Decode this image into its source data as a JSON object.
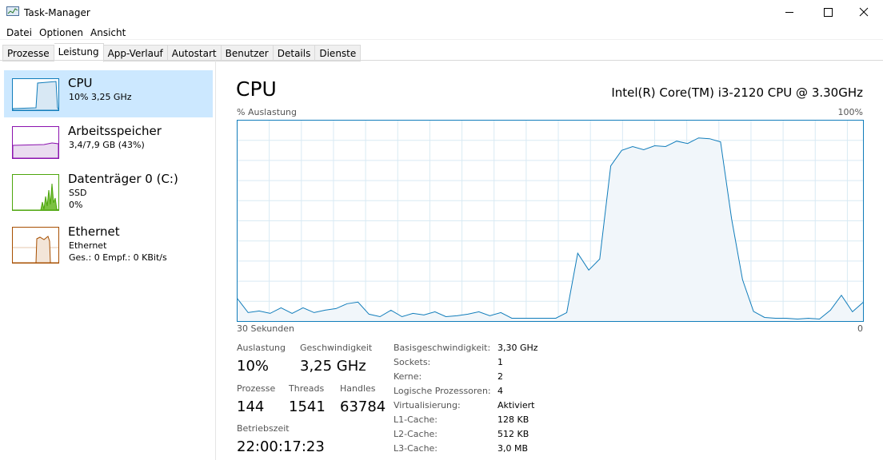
{
  "window": {
    "title": "Task-Manager"
  },
  "menu": [
    "Datei",
    "Optionen",
    "Ansicht"
  ],
  "tabs": {
    "items": [
      "Prozesse",
      "Leistung",
      "App-Verlauf",
      "Autostart",
      "Benutzer",
      "Details",
      "Dienste"
    ],
    "active": 1
  },
  "sidebar": [
    {
      "name": "CPU",
      "lines": [
        "10% 3,25 GHz"
      ]
    },
    {
      "name": "Arbeitsspeicher",
      "lines": [
        "3,4/7,9 GB (43%)"
      ]
    },
    {
      "name": "Datenträger 0 (C:)",
      "lines": [
        "SSD",
        "0%"
      ]
    },
    {
      "name": "Ethernet",
      "lines": [
        "Ethernet",
        "Ges.: 0 Empf.: 0 KBit/s"
      ]
    }
  ],
  "main": {
    "title": "CPU",
    "model": "Intel(R) Core(TM) i3-2120 CPU @ 3.30GHz",
    "graph": {
      "y_label": "% Auslastung",
      "ylim": [
        0,
        {
          "value": 100,
          "label": "100%"
        }
      ],
      "xlim": [
        {
          "value": 30,
          "label": "30 Sekunden"
        },
        0
      ],
      "values": [
        11.5,
        4.4,
        5.2,
        4,
        6.8,
        4,
        6.8,
        4.4,
        5.6,
        6.4,
        8.8,
        9.6,
        3.6,
        2.4,
        5.6,
        2.4,
        4,
        3.2,
        4.8,
        2.4,
        2.8,
        3.6,
        4.8,
        2.8,
        4.4,
        1.6,
        1.6,
        1.6,
        1.6,
        1.6,
        4.4,
        33.9,
        25.5,
        31,
        77.3,
        85,
        86.9,
        85.3,
        87.3,
        86.9,
        89.6,
        88.4,
        91.2,
        90.8,
        89.2,
        51,
        20.7,
        5,
        2,
        1.6,
        1.6,
        1.2,
        1.6,
        1.2,
        5.6,
        13,
        4.8,
        9.6
      ]
    },
    "stats": [
      {
        "label": "Auslastung",
        "value": "10%"
      },
      {
        "label": "Geschwindigkeit",
        "value": "3,25 GHz"
      },
      {
        "label": "Prozesse",
        "value": "144"
      },
      {
        "label": "Threads",
        "value": "1541"
      },
      {
        "label": "Handles",
        "value": "63784"
      },
      {
        "label": "Betriebszeit",
        "value": "22:00:17:23"
      }
    ],
    "details": [
      [
        "Basisgeschwindigkeit:",
        "3,30 GHz"
      ],
      [
        "Sockets:",
        "1"
      ],
      [
        "Kerne:",
        "2"
      ],
      [
        "Logische Prozessoren:",
        "4"
      ],
      [
        "Virtualisierung:",
        "Aktiviert"
      ],
      [
        "L1-Cache:",
        "128 KB"
      ],
      [
        "L2-Cache:",
        "512 KB"
      ],
      [
        "L3-Cache:",
        "3,0 MB"
      ]
    ]
  }
}
